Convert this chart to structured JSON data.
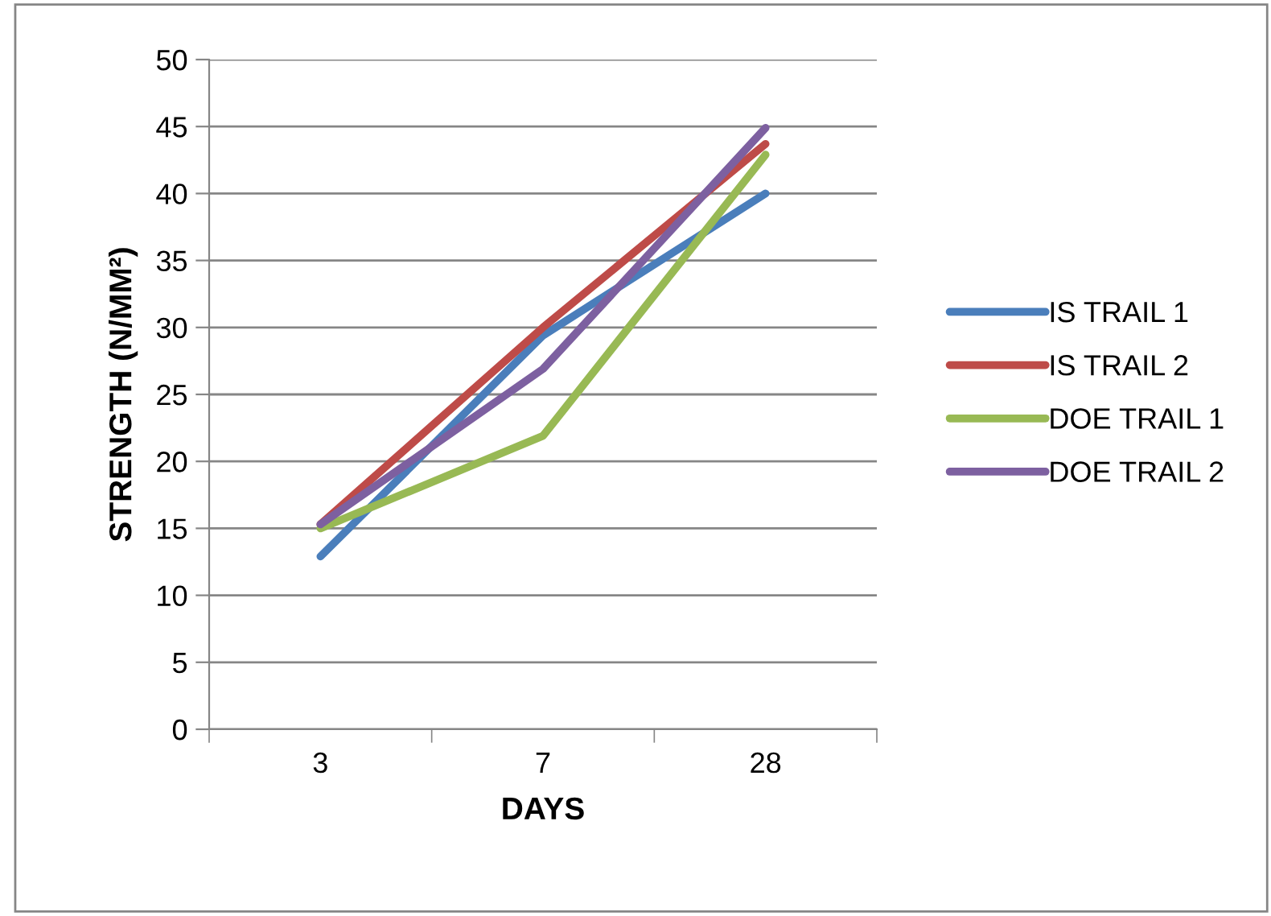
{
  "chart_data": {
    "type": "line",
    "xlabel": "DAYS",
    "ylabel": "STRENGTH (N/MM²)",
    "categories": [
      "3",
      "7",
      "28"
    ],
    "series": [
      {
        "name": "IS TRAIL 1",
        "color": "#4a7ebb",
        "values": [
          12.9,
          29.4,
          40
        ]
      },
      {
        "name": "IS TRAIL 2",
        "color": "#be4b48",
        "values": [
          15.3,
          30,
          43.7
        ]
      },
      {
        "name": "DOE TRAIL 1",
        "color": "#98b954",
        "values": [
          15,
          21.9,
          42.9
        ]
      },
      {
        "name": "DOE TRAIL 2",
        "color": "#7d60a0",
        "values": [
          15.3,
          26.9,
          44.9
        ]
      }
    ],
    "ylim": [
      0,
      50
    ],
    "yticks": [
      0,
      5,
      10,
      15,
      20,
      25,
      30,
      35,
      40,
      45,
      50
    ],
    "grid": "y",
    "legend": "right",
    "marker": "none",
    "line_style": "solid"
  }
}
